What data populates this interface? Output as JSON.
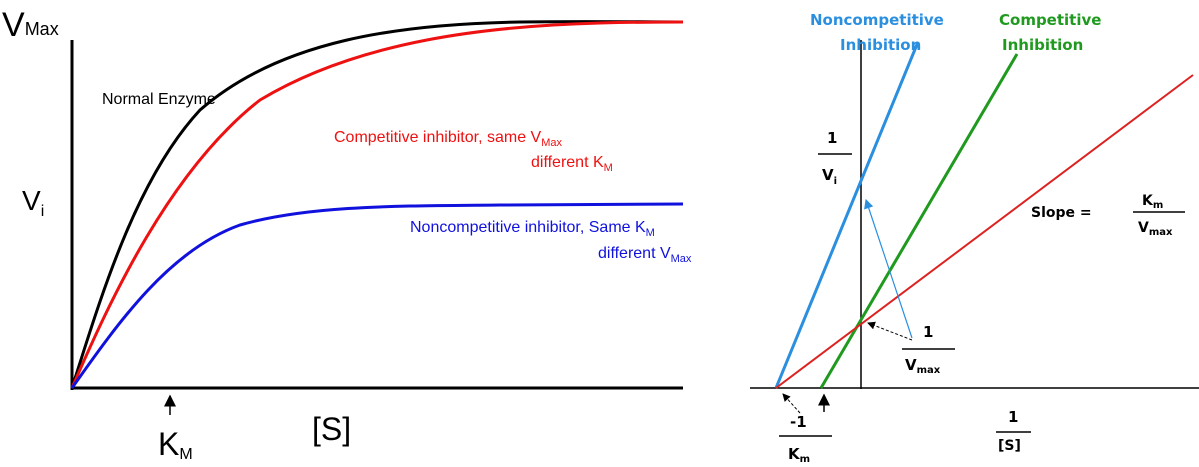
{
  "left_plot": {
    "y_axis_label": "V",
    "y_axis_label_sub": "i",
    "y_max_label": "V",
    "y_max_label_sub": "Max",
    "x_axis_label": "[S]",
    "km_label": "K",
    "km_label_sub": "M",
    "curves": [
      {
        "key": "normal",
        "color": "#000000",
        "label_lines": [
          "Normal Enzyme"
        ]
      },
      {
        "key": "competitive",
        "color": "#ee1111",
        "label_line1": "Competitive inhibitor,  same V",
        "label_line1_sub": "Max",
        "label_line2": "different K",
        "label_line2_sub": "M"
      },
      {
        "key": "noncompetitive",
        "color": "#1111dd",
        "label_line1": "Noncompetitive inhibitor,  Same K",
        "label_line1_sub": "M",
        "label_line2": "different V",
        "label_line2_sub": "Max"
      }
    ]
  },
  "right_plot": {
    "y_axis_num": "1",
    "y_axis_den": "V",
    "y_axis_den_sub": "i",
    "x_axis_num": "1",
    "x_axis_den": "[S]",
    "intercept_x_num": "-1",
    "intercept_x_den": "K",
    "intercept_x_den_sub": "m",
    "intercept_y_num": "1",
    "intercept_y_den": "V",
    "intercept_y_den_sub": "max",
    "slope_label": "Slope =",
    "slope_num": "K",
    "slope_num_sub": "m",
    "slope_den": "V",
    "slope_den_sub": "max",
    "lines": [
      {
        "key": "noncompetitive",
        "color": "#2b8fe0",
        "label_lines": [
          "Noncompetitive",
          "Inhibition"
        ]
      },
      {
        "key": "competitive",
        "color": "#1f9a1f",
        "label_lines": [
          "Competitive",
          "Inhibition"
        ]
      },
      {
        "key": "normal",
        "color": "#dd2222",
        "label_lines": []
      }
    ]
  }
}
